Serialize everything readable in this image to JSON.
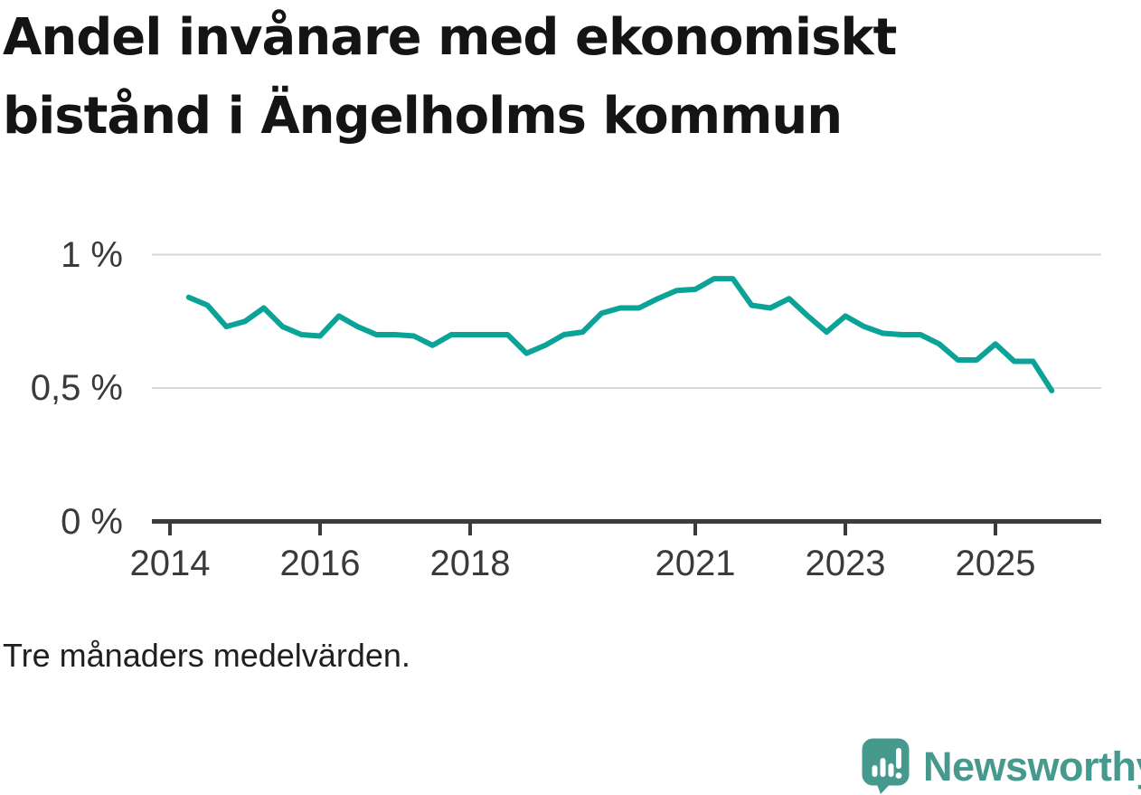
{
  "title": "Andel invånare med ekonomiskt bistånd i Ängelholms kommun",
  "note": "Tre månaders medelvärden.",
  "logo": {
    "text": "Newsworthy",
    "icon": "newsworthy-speech-bubble-bar-chart-icon"
  },
  "colors": {
    "line": "#0ba398",
    "gridline": "#d9d9d9",
    "axis": "#3b3b3b",
    "tick_label": "#3a3a3a",
    "title_text": "#141414",
    "logo_teal": "#45998d"
  },
  "chart_data": {
    "type": "line",
    "title": "Andel invånare med ekonomiskt bistånd i Ängelholms kommun",
    "note": "Tre månaders medelvärden.",
    "unit": "%",
    "xlabel": "",
    "ylabel": "",
    "grid": "horizontal-light",
    "legend": "none",
    "xlim": [
      2013.76,
      2026.42
    ],
    "ylim": [
      0,
      1.14
    ],
    "x_ticks": [
      {
        "year": 2014,
        "label": "2014"
      },
      {
        "year": 2016,
        "label": "2016"
      },
      {
        "year": 2018,
        "label": "2018"
      },
      {
        "year": 2021,
        "label": "2021"
      },
      {
        "year": 2023,
        "label": "2023"
      },
      {
        "year": 2025,
        "label": "2025"
      }
    ],
    "y_ticks": [
      {
        "value": 1,
        "label": "1 %"
      },
      {
        "value": 0.5,
        "label": "0,5 %"
      },
      {
        "value": 0,
        "label": "0 %"
      }
    ],
    "x": [
      2014.25,
      2014.5,
      2014.75,
      2015,
      2015.25,
      2015.5,
      2015.75,
      2016,
      2016.25,
      2016.5,
      2016.75,
      2017,
      2017.25,
      2017.5,
      2017.75,
      2018,
      2018.25,
      2018.5,
      2018.75,
      2019,
      2019.25,
      2019.5,
      2019.75,
      2020,
      2020.25,
      2020.5,
      2020.75,
      2021,
      2021.25,
      2021.5,
      2021.75,
      2022,
      2022.25,
      2022.5,
      2022.75,
      2023,
      2023.25,
      2023.5,
      2023.75,
      2024,
      2024.25,
      2024.5,
      2024.75,
      2025,
      2025.25,
      2025.5,
      2025.75
    ],
    "values": [
      0.84,
      0.81,
      0.73,
      0.75,
      0.8,
      0.73,
      0.7,
      0.695,
      0.77,
      0.73,
      0.7,
      0.7,
      0.695,
      0.66,
      0.7,
      0.7,
      0.7,
      0.7,
      0.63,
      0.66,
      0.7,
      0.71,
      0.78,
      0.8,
      0.8,
      0.835,
      0.865,
      0.87,
      0.91,
      0.91,
      0.81,
      0.8,
      0.835,
      0.77,
      0.71,
      0.77,
      0.73,
      0.705,
      0.7,
      0.7,
      0.665,
      0.605,
      0.605,
      0.665,
      0.6,
      0.6,
      0.49
    ]
  }
}
